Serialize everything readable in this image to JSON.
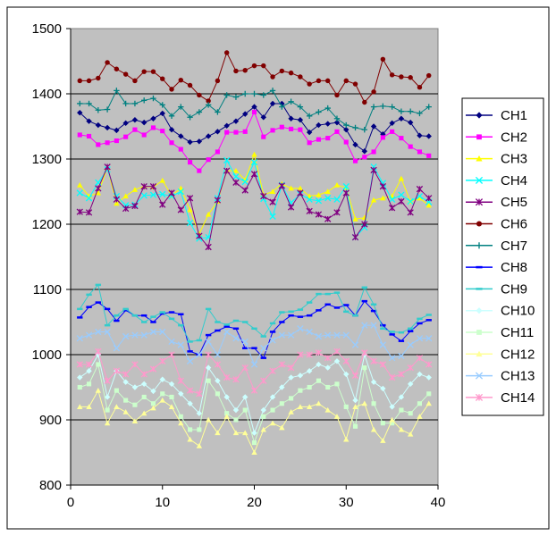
{
  "chart_data": {
    "type": "line",
    "xlim": [
      0,
      40
    ],
    "ylim": [
      800,
      1500
    ],
    "xticks": [
      "0",
      "10",
      "20",
      "30",
      "40"
    ],
    "yticks": [
      "800",
      "900",
      "1000",
      "1100",
      "1200",
      "1300",
      "1400",
      "1500"
    ],
    "grid": "horizontal",
    "legend_position": "right",
    "x": [
      1,
      2,
      3,
      4,
      5,
      6,
      7,
      8,
      9,
      10,
      11,
      12,
      13,
      14,
      15,
      16,
      17,
      18,
      19,
      20,
      21,
      22,
      23,
      24,
      25,
      26,
      27,
      28,
      29,
      30,
      31,
      32,
      33,
      34,
      35,
      36,
      37,
      38,
      39
    ],
    "series": [
      {
        "name": "CH1",
        "color": "#000080",
        "marker": "diamond",
        "values": [
          1371,
          1358,
          1352,
          1348,
          1344,
          1355,
          1360,
          1356,
          1362,
          1370,
          1345,
          1335,
          1326,
          1327,
          1335,
          1342,
          1351,
          1358,
          1369,
          1380,
          1364,
          1385,
          1385,
          1362,
          1360,
          1341,
          1352,
          1354,
          1356,
          1345,
          1322,
          1312,
          1350,
          1338,
          1355,
          1362,
          1356,
          1336,
          1335
        ]
      },
      {
        "name": "CH2",
        "color": "#FF00FF",
        "marker": "square",
        "values": [
          1337,
          1335,
          1322,
          1325,
          1328,
          1334,
          1345,
          1337,
          1348,
          1343,
          1325,
          1315,
          1295,
          1282,
          1299,
          1311,
          1341,
          1341,
          1342,
          1372,
          1334,
          1344,
          1349,
          1346,
          1345,
          1325,
          1330,
          1332,
          1342,
          1326,
          1297,
          1303,
          1311,
          1333,
          1342,
          1332,
          1319,
          1311,
          1305
        ]
      },
      {
        "name": "CH3",
        "color": "#FFFF00",
        "marker": "triangle",
        "values": [
          1260,
          1243,
          1248,
          1286,
          1232,
          1243,
          1253,
          1258,
          1257,
          1267,
          1244,
          1255,
          1222,
          1185,
          1215,
          1235,
          1282,
          1282,
          1268,
          1307,
          1245,
          1250,
          1262,
          1255,
          1255,
          1243,
          1245,
          1250,
          1260,
          1256,
          1208,
          1210,
          1237,
          1240,
          1243,
          1270,
          1235,
          1240,
          1229
        ]
      },
      {
        "name": "CH4",
        "color": "#00FFFF",
        "marker": "x",
        "values": [
          1248,
          1240,
          1264,
          1284,
          1243,
          1229,
          1230,
          1244,
          1245,
          1246,
          1243,
          1250,
          1202,
          1178,
          1180,
          1240,
          1298,
          1273,
          1265,
          1295,
          1239,
          1212,
          1260,
          1233,
          1246,
          1238,
          1236,
          1240,
          1238,
          1258,
          1180,
          1195,
          1288,
          1263,
          1238,
          1245,
          1235,
          1243,
          1234
        ]
      },
      {
        "name": "CH5",
        "color": "#800080",
        "marker": "asterisk",
        "values": [
          1219,
          1218,
          1255,
          1288,
          1238,
          1224,
          1228,
          1258,
          1258,
          1230,
          1248,
          1222,
          1240,
          1182,
          1165,
          1237,
          1282,
          1264,
          1252,
          1277,
          1243,
          1234,
          1259,
          1226,
          1248,
          1220,
          1215,
          1208,
          1218,
          1248,
          1180,
          1200,
          1283,
          1258,
          1225,
          1235,
          1218,
          1254,
          1240
        ]
      },
      {
        "name": "CH6",
        "color": "#800000",
        "marker": "circle",
        "values": [
          1420,
          1420,
          1424,
          1448,
          1438,
          1430,
          1420,
          1434,
          1434,
          1423,
          1407,
          1421,
          1413,
          1398,
          1389,
          1420,
          1463,
          1435,
          1436,
          1443,
          1443,
          1426,
          1435,
          1432,
          1426,
          1415,
          1420,
          1420,
          1398,
          1420,
          1415,
          1387,
          1403,
          1453,
          1429,
          1426,
          1425,
          1410,
          1428
        ]
      },
      {
        "name": "CH7",
        "color": "#008080",
        "marker": "plus",
        "values": [
          1385,
          1385,
          1375,
          1376,
          1405,
          1385,
          1385,
          1390,
          1393,
          1383,
          1366,
          1380,
          1364,
          1372,
          1383,
          1372,
          1398,
          1395,
          1400,
          1400,
          1398,
          1405,
          1380,
          1388,
          1380,
          1366,
          1372,
          1378,
          1362,
          1352,
          1348,
          1345,
          1380,
          1381,
          1380,
          1373,
          1373,
          1370,
          1380
        ]
      },
      {
        "name": "CH8",
        "color": "#0000FF",
        "marker": "dash",
        "values": [
          1057,
          1073,
          1080,
          1070,
          1052,
          1068,
          1060,
          1060,
          1050,
          1063,
          1065,
          1062,
          1005,
          1000,
          1030,
          1037,
          1043,
          1040,
          1010,
          1010,
          995,
          1035,
          1050,
          1060,
          1058,
          1060,
          1068,
          1077,
          1072,
          1076,
          1060,
          1082,
          1067,
          1045,
          1031,
          1021,
          1036,
          1048,
          1053
        ]
      },
      {
        "name": "CH9",
        "color": "#33CCCC",
        "marker": "dash",
        "values": [
          1070,
          1092,
          1107,
          1045,
          1060,
          1070,
          1060,
          1050,
          1058,
          1065,
          1055,
          1045,
          1020,
          1022,
          1070,
          1050,
          1046,
          1052,
          1050,
          1040,
          1028,
          1048,
          1065,
          1066,
          1069,
          1080,
          1093,
          1093,
          1095,
          1066,
          1060,
          1103,
          1077,
          1040,
          1035,
          1034,
          1040,
          1055,
          1061
        ]
      },
      {
        "name": "CH10",
        "color": "#CCFFFF",
        "marker": "diamond",
        "values": [
          965,
          975,
          1000,
          935,
          975,
          958,
          950,
          955,
          944,
          962,
          955,
          940,
          925,
          910,
          980,
          960,
          935,
          915,
          935,
          880,
          915,
          935,
          950,
          965,
          968,
          975,
          985,
          980,
          990,
          970,
          930,
          1000,
          958,
          948,
          920,
          935,
          955,
          970,
          965
        ]
      },
      {
        "name": "CH11",
        "color": "#CCFFCC",
        "marker": "square",
        "values": [
          950,
          955,
          985,
          915,
          945,
          930,
          923,
          935,
          925,
          940,
          935,
          905,
          885,
          885,
          960,
          940,
          910,
          900,
          915,
          865,
          905,
          915,
          925,
          933,
          945,
          950,
          960,
          950,
          955,
          920,
          890,
          980,
          925,
          895,
          895,
          915,
          910,
          925,
          940
        ]
      },
      {
        "name": "CH12",
        "color": "#FFFF99",
        "marker": "triangle",
        "values": [
          920,
          920,
          945,
          895,
          920,
          912,
          898,
          910,
          918,
          930,
          920,
          895,
          870,
          860,
          900,
          880,
          905,
          880,
          880,
          850,
          885,
          895,
          888,
          912,
          920,
          920,
          925,
          915,
          905,
          870,
          920,
          925,
          885,
          868,
          900,
          885,
          878,
          905,
          925
        ]
      },
      {
        "name": "CH13",
        "color": "#99CCFF",
        "marker": "x",
        "values": [
          1025,
          1030,
          1035,
          1035,
          1010,
          1028,
          1030,
          1030,
          1035,
          1035,
          1020,
          1015,
          990,
          1000,
          1020,
          1000,
          1035,
          1025,
          1020,
          985,
          1010,
          1022,
          1030,
          1030,
          1040,
          1035,
          1028,
          1030,
          1030,
          1030,
          1015,
          1045,
          1045,
          1015,
          995,
          998,
          1015,
          1025,
          1025
        ]
      },
      {
        "name": "CH14",
        "color": "#FF99CC",
        "marker": "asterisk",
        "values": [
          985,
          985,
          1005,
          960,
          975,
          970,
          985,
          970,
          978,
          990,
          1000,
          960,
          945,
          940,
          1000,
          985,
          965,
          962,
          980,
          945,
          960,
          975,
          985,
          980,
          1000,
          1000,
          1003,
          995,
          1005,
          990,
          968,
          1003,
          990,
          985,
          965,
          970,
          980,
          995,
          985
        ]
      }
    ]
  }
}
